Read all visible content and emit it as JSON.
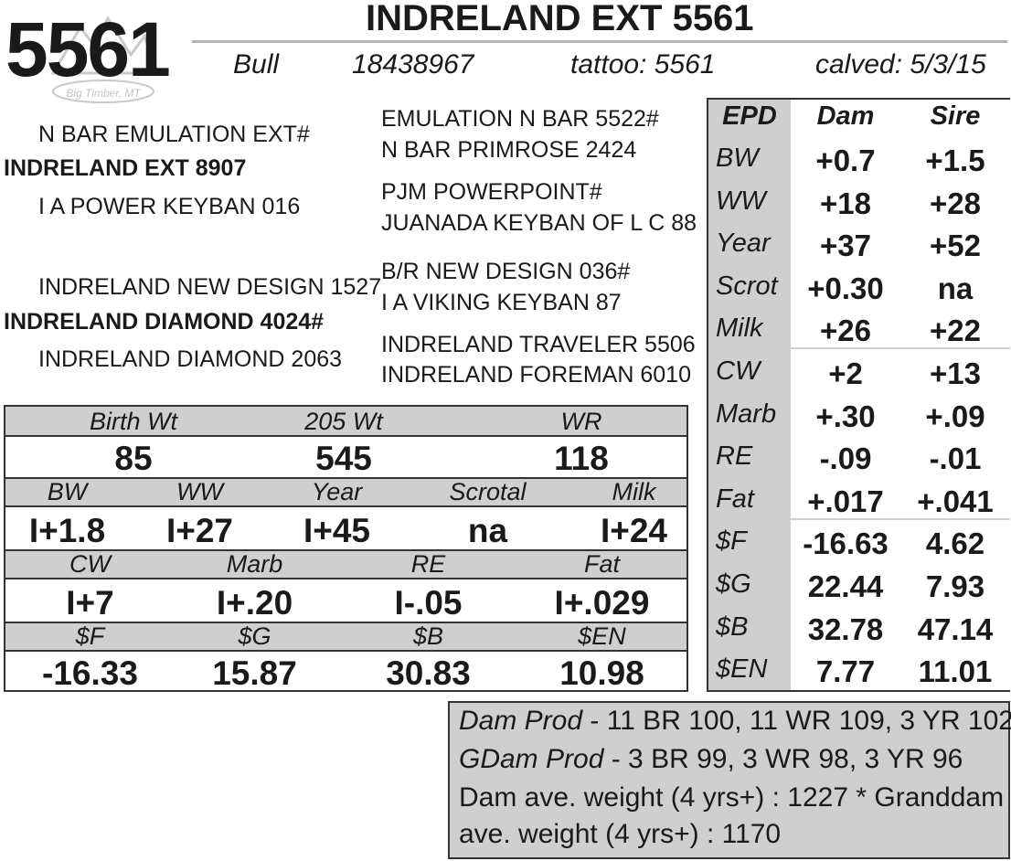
{
  "header": {
    "lot": "5561",
    "name": "INDRELAND EXT 5561",
    "sex": "Bull",
    "reg": "18438967",
    "tattoo": "tattoo: 5561",
    "calved": "calved: 5/3/15",
    "logo_text": "Big Timber, MT"
  },
  "pedigree": {
    "sire_sire": "N BAR EMULATION EXT#",
    "sire": "INDRELAND EXT 8907",
    "sire_dam": "I A POWER KEYBAN 016",
    "dam_sire": "INDRELAND NEW DESIGN 1527",
    "dam": "INDRELAND DIAMOND 4024#",
    "dam_dam": "INDRELAND DIAMOND 2063",
    "ss_sire": "EMULATION N BAR 5522#",
    "ss_dam": "N BAR PRIMROSE 2424",
    "sd_sire": "PJM POWERPOINT#",
    "sd_dam": "JUANADA KEYBAN OF L C 88",
    "ds_sire": "B/R NEW DESIGN 036#",
    "ds_dam": "I A VIKING KEYBAN 87",
    "dd_sire": "INDRELAND TRAVELER 5506",
    "dd_dam": "INDRELAND FOREMAN 6010"
  },
  "performance": {
    "row1": {
      "headers": [
        "Birth Wt",
        "205 Wt",
        "WR"
      ],
      "values": [
        "85",
        "545",
        "118"
      ]
    },
    "row2": {
      "headers": [
        "BW",
        "WW",
        "Year",
        "Scrotal",
        "Milk"
      ],
      "values": [
        "I+1.8",
        "I+27",
        "I+45",
        "na",
        "I+24"
      ]
    },
    "row3": {
      "headers": [
        "CW",
        "Marb",
        "RE",
        "Fat"
      ],
      "values": [
        "I+7",
        "I+.20",
        "I-.05",
        "I+.029"
      ]
    },
    "row4": {
      "headers": [
        "$F",
        "$G",
        "$B",
        "$EN"
      ],
      "values": [
        "-16.33",
        "15.87",
        "30.83",
        "10.98"
      ]
    }
  },
  "epd": {
    "headers": [
      "EPD",
      "Dam",
      "Sire"
    ],
    "rows": [
      {
        "label": "BW",
        "dam": "+0.7",
        "sire": "+1.5"
      },
      {
        "label": "WW",
        "dam": "+18",
        "sire": "+28"
      },
      {
        "label": "Year",
        "dam": "+37",
        "sire": "+52"
      },
      {
        "label": "Scrot",
        "dam": "+0.30",
        "sire": "na"
      },
      {
        "label": "Milk",
        "dam": "+26",
        "sire": "+22"
      },
      {
        "label": "CW",
        "dam": "+2",
        "sire": "+13"
      },
      {
        "label": "Marb",
        "dam": "+.30",
        "sire": "+.09"
      },
      {
        "label": "RE",
        "dam": "-.09",
        "sire": "-.01"
      },
      {
        "label": "Fat",
        "dam": "+.017",
        "sire": "+.041"
      },
      {
        "label": "$F",
        "dam": "-16.63",
        "sire": "4.62"
      },
      {
        "label": "$G",
        "dam": "22.44",
        "sire": "7.93"
      },
      {
        "label": "$B",
        "dam": "32.78",
        "sire": "47.14"
      },
      {
        "label": "$EN",
        "dam": "7.77",
        "sire": "11.01"
      }
    ]
  },
  "notes": {
    "dam_prod_label": "Dam Prod",
    "dam_prod": " - 11 BR 100, 11 WR 109, 3 YR 102",
    "gdam_prod_label": "GDam Prod",
    "gdam_prod": " - 3 BR 99, 3 WR 98, 3 YR 96",
    "line3": "Dam ave. weight (4 yrs+) : 1227 * Granddam",
    "line4": "ave. weight (4 yrs+) : 1170"
  }
}
